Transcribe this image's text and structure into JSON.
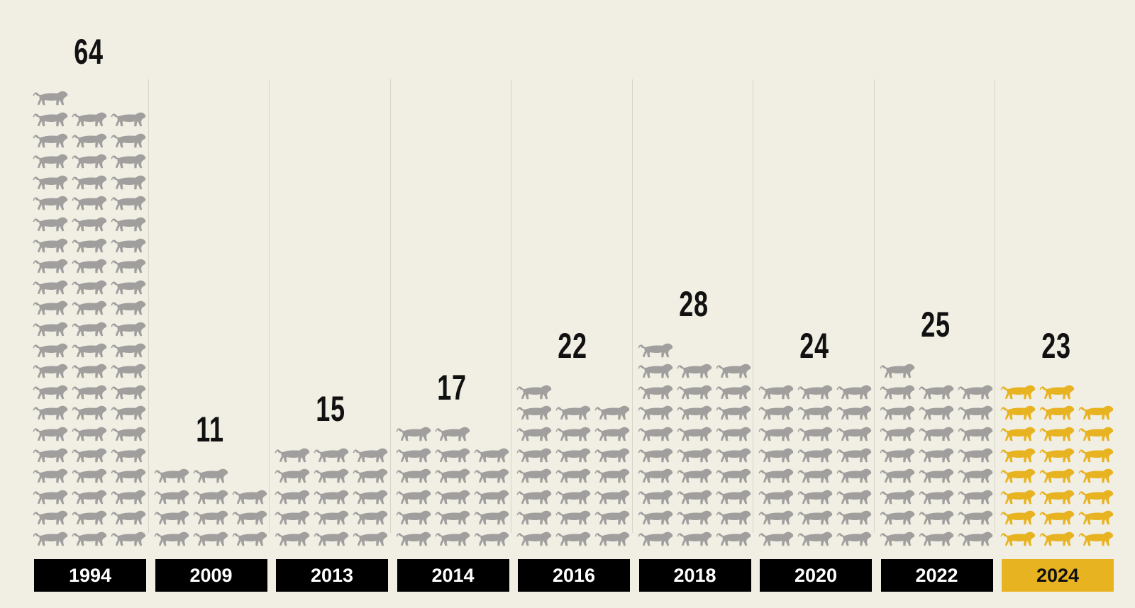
{
  "colors": {
    "background": "#f1eee4",
    "icon_default": "#a09f9d",
    "icon_highlight": "#e8b320",
    "year_box": "#000000",
    "year_box_highlight": "#e8b320"
  },
  "icon": "tiger-icon",
  "chart_data": {
    "type": "bar",
    "style": "isotype pictogram columns (3 icons per row, 1 icon per unit)",
    "title": "",
    "xlabel": "",
    "ylabel": "",
    "grid": false,
    "categories": [
      "1994",
      "2009",
      "2013",
      "2014",
      "2016",
      "2018",
      "2020",
      "2022",
      "2024"
    ],
    "values": [
      64,
      11,
      15,
      17,
      22,
      28,
      24,
      25,
      23
    ],
    "highlighted_category": "2024"
  }
}
